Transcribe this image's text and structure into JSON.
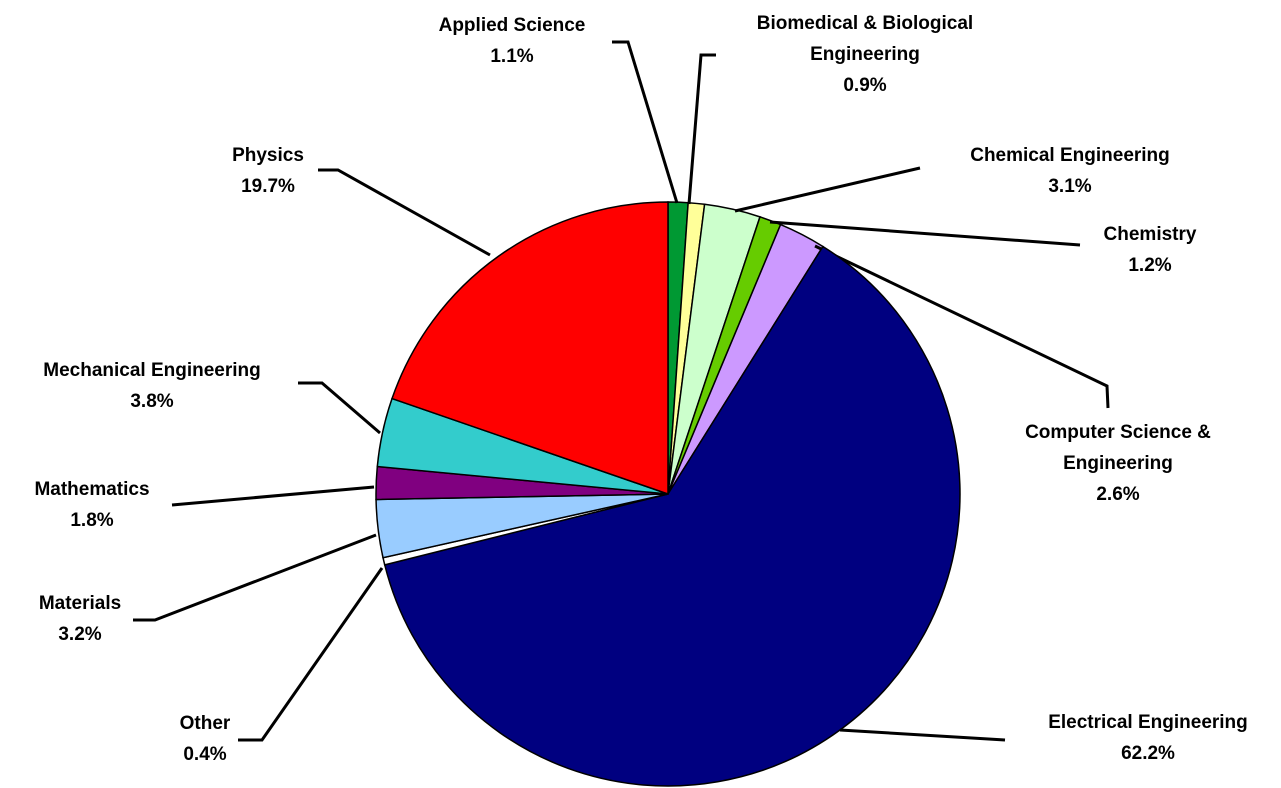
{
  "chart_data": {
    "type": "pie",
    "categories": [
      "Applied Science",
      "Biomedical & Biological Engineering",
      "Chemical Engineering",
      "Chemistry",
      "Computer Science & Engineering",
      "Electrical Engineering",
      "Other",
      "Materials",
      "Mathematics",
      "Mechanical Engineering",
      "Physics"
    ],
    "values": [
      1.1,
      0.9,
      3.1,
      1.2,
      2.6,
      62.2,
      0.4,
      3.2,
      1.8,
      3.8,
      19.7
    ],
    "value_labels": [
      "1.1%",
      "0.9%",
      "3.1%",
      "1.2%",
      "2.6%",
      "62.2%",
      "0.4%",
      "3.2%",
      "1.8%",
      "3.8%",
      "19.7%"
    ],
    "colors": [
      "#009933",
      "#ffff99",
      "#ccffcc",
      "#66cc00",
      "#cc99ff",
      "#000080",
      "#ffffff",
      "#99ccff",
      "#800080",
      "#33cccc",
      "#ff0000"
    ]
  }
}
